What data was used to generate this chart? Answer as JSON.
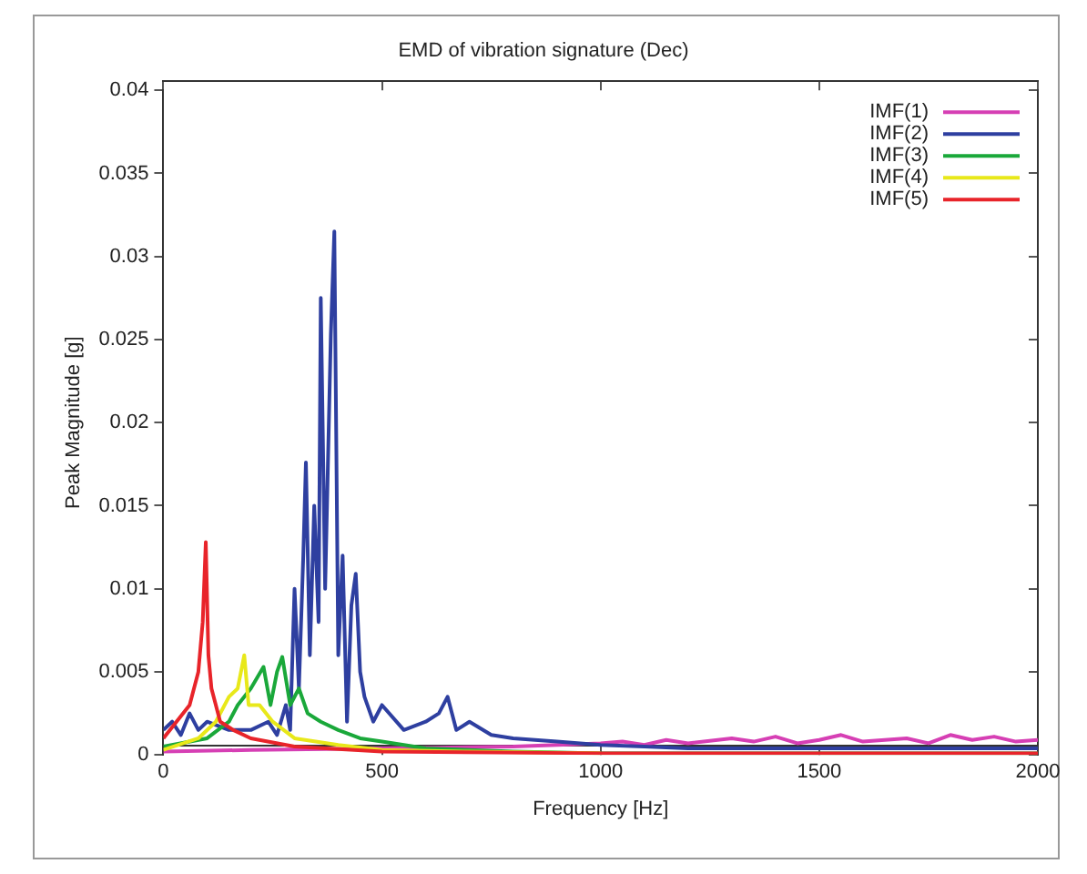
{
  "chart_data": {
    "type": "line",
    "title": "EMD of vibration signature (Dec)",
    "xlabel": "Frequency [Hz]",
    "ylabel": "Peak Magnitude [g]",
    "xlim": [
      0,
      2000
    ],
    "xticks": [
      0,
      500,
      1000,
      1500,
      2000
    ],
    "ylim": [
      0,
      0.04
    ],
    "yticks": [
      0,
      0.005,
      0.01,
      0.015,
      0.02,
      0.025,
      0.03,
      0.035,
      0.04
    ],
    "grid": false,
    "legend": "top right",
    "marker": "none",
    "line_style": "solid",
    "series": [
      {
        "name": "IMF(1)",
        "color": "#d63fb4",
        "x": [
          0,
          200,
          500,
          800,
          1000,
          1050,
          1100,
          1150,
          1200,
          1300,
          1350,
          1400,
          1450,
          1500,
          1550,
          1600,
          1700,
          1750,
          1800,
          1850,
          1900,
          1950,
          2000
        ],
        "values": [
          0.0002,
          0.0003,
          0.0004,
          0.0005,
          0.0007,
          0.0008,
          0.0006,
          0.0009,
          0.0007,
          0.001,
          0.0008,
          0.0011,
          0.0007,
          0.0009,
          0.0012,
          0.0008,
          0.001,
          0.0007,
          0.0012,
          0.0009,
          0.0011,
          0.0008,
          0.0009
        ]
      },
      {
        "name": "IMF(2)",
        "color": "#2e3fa0",
        "x": [
          0,
          20,
          40,
          60,
          80,
          100,
          150,
          200,
          240,
          260,
          280,
          290,
          300,
          310,
          320,
          326,
          335,
          345,
          355,
          360,
          370,
          383,
          391,
          400,
          410,
          420,
          430,
          440,
          450,
          460,
          480,
          500,
          550,
          600,
          630,
          650,
          670,
          700,
          750,
          800,
          900,
          1000,
          1100,
          1200,
          1400,
          1600,
          1800,
          2000
        ],
        "values": [
          0.0015,
          0.002,
          0.0012,
          0.0025,
          0.0015,
          0.002,
          0.0015,
          0.0015,
          0.002,
          0.0012,
          0.003,
          0.0015,
          0.01,
          0.004,
          0.012,
          0.0176,
          0.006,
          0.015,
          0.008,
          0.0275,
          0.01,
          0.0253,
          0.0315,
          0.006,
          0.012,
          0.002,
          0.009,
          0.0109,
          0.005,
          0.0035,
          0.002,
          0.003,
          0.0015,
          0.002,
          0.0025,
          0.0035,
          0.0015,
          0.002,
          0.0012,
          0.001,
          0.0008,
          0.0006,
          0.0005,
          0.0004,
          0.0004,
          0.0004,
          0.0004,
          0.0004
        ]
      },
      {
        "name": "IMF(3)",
        "color": "#1aa83a",
        "x": [
          0,
          100,
          150,
          170,
          200,
          229,
          245,
          260,
          272,
          290,
          310,
          330,
          360,
          400,
          450,
          500,
          600,
          800,
          1000,
          1500,
          2000
        ],
        "values": [
          0.0005,
          0.001,
          0.002,
          0.003,
          0.004,
          0.0053,
          0.003,
          0.005,
          0.0059,
          0.003,
          0.004,
          0.0025,
          0.002,
          0.0015,
          0.001,
          0.0008,
          0.0004,
          0.0002,
          0.0001,
          0.0001,
          0.0001
        ]
      },
      {
        "name": "IMF(4)",
        "color": "#e8e81a",
        "x": [
          0,
          80,
          120,
          150,
          170,
          185,
          195,
          220,
          250,
          300,
          400,
          500,
          700,
          1000
        ],
        "values": [
          0.0003,
          0.001,
          0.002,
          0.0035,
          0.004,
          0.006,
          0.003,
          0.003,
          0.002,
          0.001,
          0.0006,
          0.0003,
          0.0002,
          0.0001
        ]
      },
      {
        "name": "IMF(5)",
        "color": "#e8242a",
        "x": [
          0,
          30,
          60,
          80,
          90,
          97,
          103,
          110,
          130,
          160,
          200,
          300,
          500,
          1000,
          2000
        ],
        "values": [
          0.001,
          0.002,
          0.003,
          0.005,
          0.008,
          0.0128,
          0.006,
          0.004,
          0.002,
          0.0015,
          0.001,
          0.0005,
          0.0002,
          0.0001,
          0.0001
        ]
      }
    ]
  }
}
